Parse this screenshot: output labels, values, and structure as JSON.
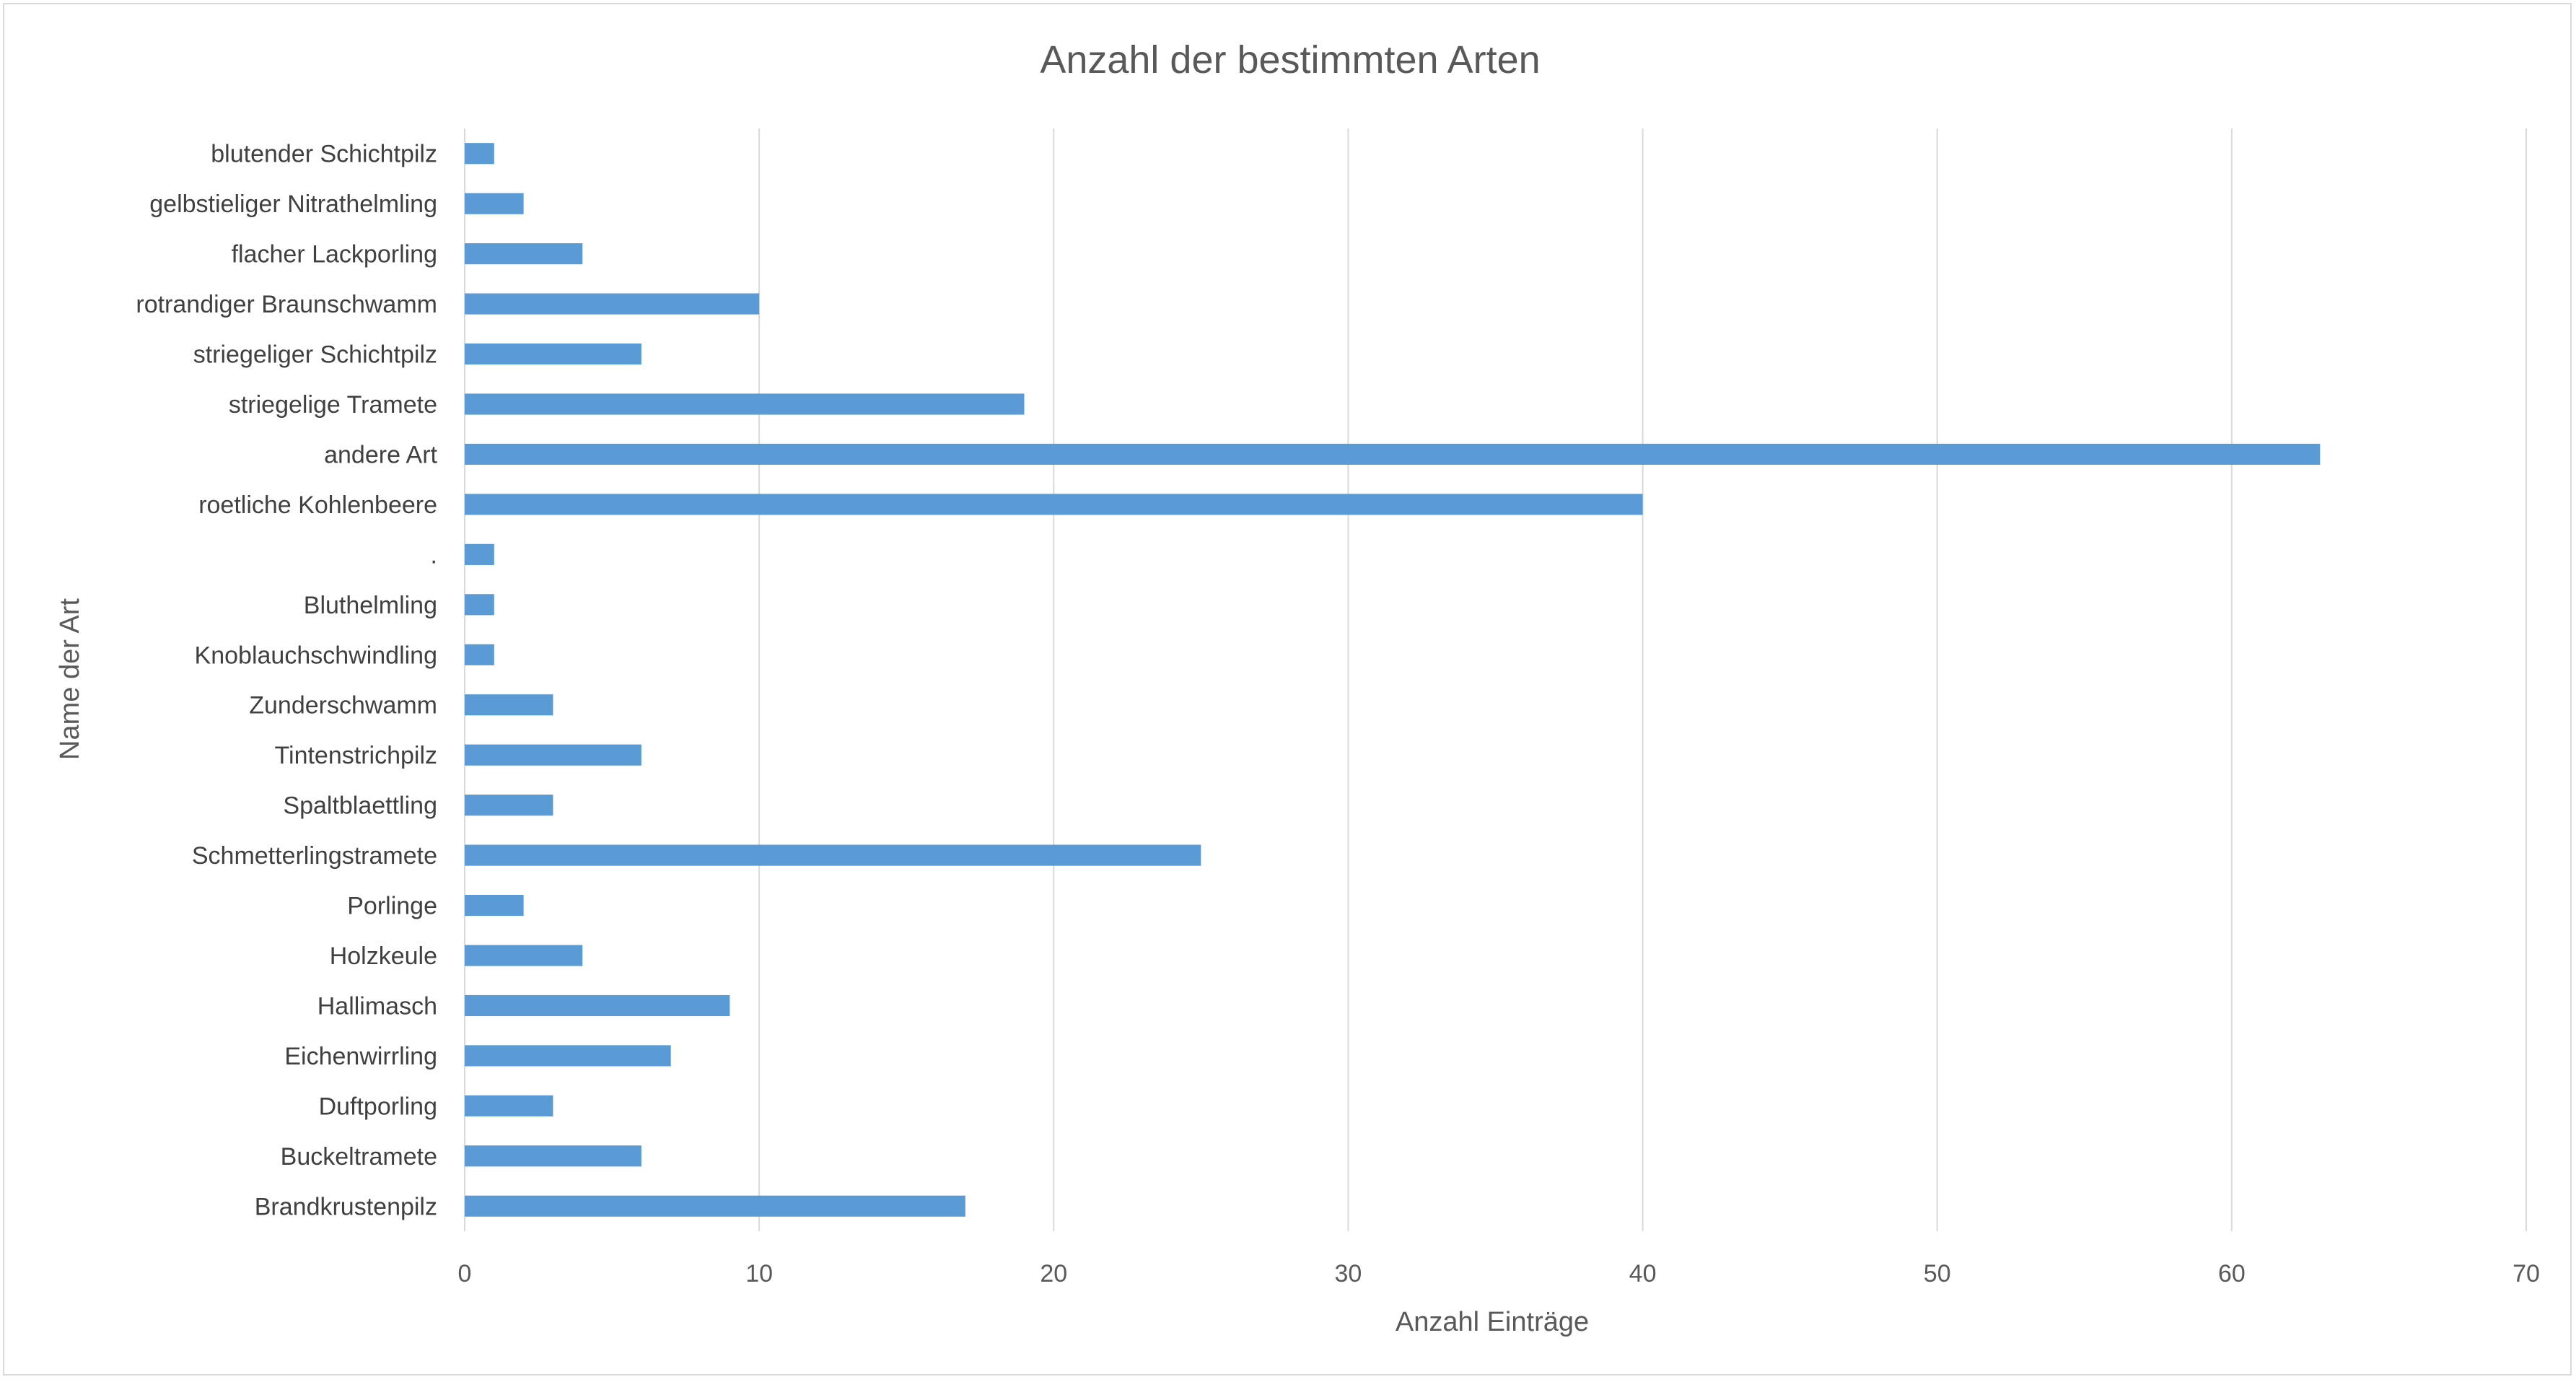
{
  "chart_data": {
    "type": "bar",
    "orientation": "horizontal",
    "title": "Anzahl der bestimmten Arten",
    "xlabel": "Anzahl Einträge",
    "ylabel": "Name der Art",
    "xlim": [
      0,
      70
    ],
    "xticks": [
      0,
      10,
      20,
      30,
      40,
      50,
      60,
      70
    ],
    "grid": "vertical major gridlines",
    "legend": "none",
    "bar_color": "#5b9bd5",
    "categories": [
      "blutender Schichtpilz",
      "gelbstieliger Nitrathelmling",
      "flacher Lackporling",
      "rotrandiger Braunschwamm",
      "striegeliger Schichtpilz",
      "striegelige Tramete",
      "andere Art",
      "roetliche Kohlenbeere",
      ".",
      "Bluthelmling",
      "Knoblauchschwindling",
      "Zunderschwamm",
      "Tintenstrichpilz",
      "Spaltblaettling",
      "Schmetterlingstramete",
      "Porlinge",
      "Holzkeule",
      "Hallimasch",
      "Eichenwirrling",
      "Duftporling",
      "Buckeltramete",
      "Brandkrustenpilz"
    ],
    "values": [
      1,
      2,
      4,
      10,
      6,
      19,
      63,
      40,
      1,
      1,
      1,
      3,
      6,
      3,
      25,
      2,
      4,
      9,
      7,
      3,
      6,
      17
    ]
  }
}
